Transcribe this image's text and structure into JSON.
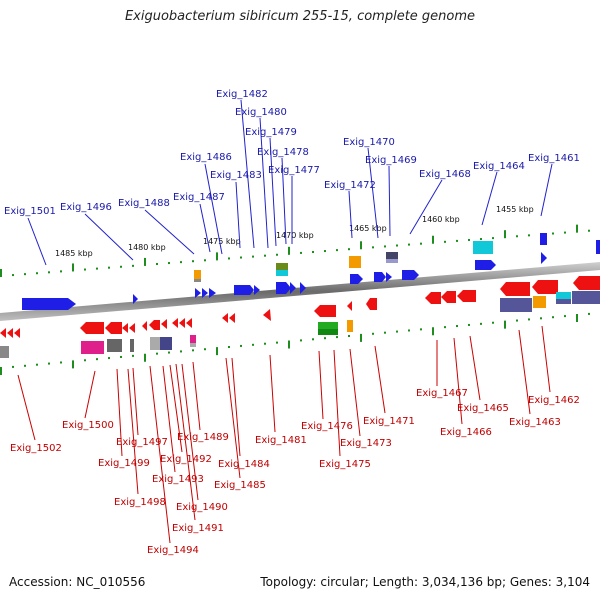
{
  "title": "Exiguobacterium sibiricum 255-15, complete genome",
  "footer": {
    "accession": "Accession: NC_010556",
    "topology": "Topology: circular; Length: 3,034,136 bp; Genes: 3,104"
  },
  "colors": {
    "forward_strand": "#1e1ee6",
    "reverse_strand": "#ee1111",
    "forward_label": "#1a1aaa",
    "reverse_label": "#c00000",
    "tick": "#1e8c1e",
    "backbone": "#888888"
  },
  "kbp_marks": [
    "1485 kbp",
    "1480 kbp",
    "1475 kbp",
    "1470 kbp",
    "1465 kbp",
    "1460 kbp",
    "1455 kbp"
  ],
  "forward_genes": [
    "Exig_1501",
    "Exig_1496",
    "Exig_1488",
    "Exig_1487",
    "Exig_1486",
    "Exig_1483",
    "Exig_1482",
    "Exig_1480",
    "Exig_1479",
    "Exig_1478",
    "Exig_1477",
    "Exig_1472",
    "Exig_1470",
    "Exig_1469",
    "Exig_1468",
    "Exig_1464",
    "Exig_1461"
  ],
  "reverse_genes": [
    "Exig_1502",
    "Exig_1500",
    "Exig_1499",
    "Exig_1498",
    "Exig_1497",
    "Exig_1494",
    "Exig_1493",
    "Exig_1492",
    "Exig_1491",
    "Exig_1490",
    "Exig_1489",
    "Exig_1485",
    "Exig_1484",
    "Exig_1481",
    "Exig_1476",
    "Exig_1475",
    "Exig_1473",
    "Exig_1471",
    "Exig_1467",
    "Exig_1466",
    "Exig_1465",
    "Exig_1463",
    "Exig_1462"
  ]
}
